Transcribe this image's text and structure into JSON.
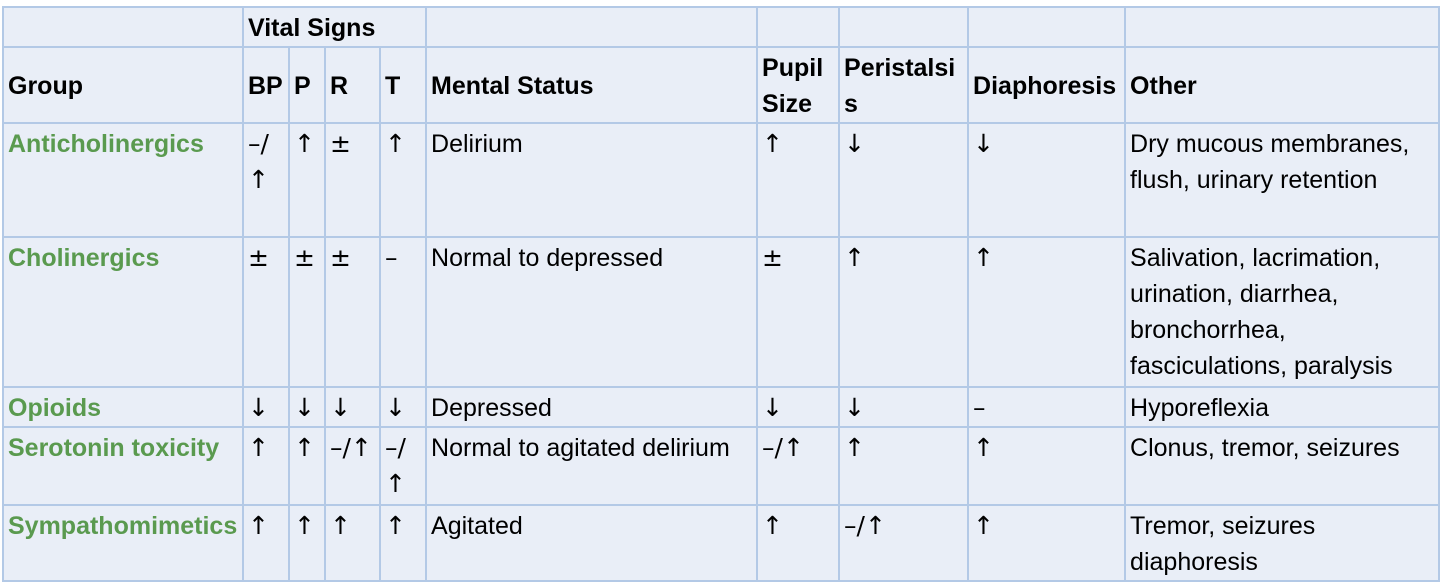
{
  "table": {
    "top_header": {
      "vital_signs": "Vital Signs"
    },
    "headers": {
      "group": "Group",
      "bp": "BP",
      "p": "P",
      "r": "R",
      "t": "T",
      "mental_status": "Mental Status",
      "pupil_size": "Pupil Size",
      "peristalsis": "Peristalsis",
      "diaphoresis": "Diaphoresis",
      "other": "Other"
    },
    "rows": [
      {
        "group": "Anticholinergics",
        "bp": "–/↑",
        "p": "↑",
        "r": "±",
        "t": "↑",
        "mental_status": "Delirium",
        "pupil_size": "↑",
        "peristalsis": "↓",
        "diaphoresis": "↓",
        "other": "Dry mucous membranes, flush, urinary retention"
      },
      {
        "group": "Cholinergics",
        "bp": "±",
        "p": "±",
        "r": "±",
        "t": "–",
        "mental_status": "Normal to depressed",
        "pupil_size": "±",
        "peristalsis": "↑",
        "diaphoresis": "↑",
        "other": "Salivation, lacrimation, urination, diarrhea, bronchorrhea, fasciculations, paralysis"
      },
      {
        "group": "Opioids",
        "bp": "↓",
        "p": "↓",
        "r": "↓",
        "t": "↓",
        "mental_status": "Depressed",
        "pupil_size": "↓",
        "peristalsis": "↓",
        "diaphoresis": "–",
        "other": "Hyporeflexia"
      },
      {
        "group": "Serotonin toxicity",
        "bp": "↑",
        "p": "↑",
        "r": "–/↑",
        "t": "–/↑",
        "mental_status": "Normal to agitated delirium",
        "pupil_size": "–/↑",
        "peristalsis": "↑",
        "diaphoresis": "↑",
        "other": "Clonus, tremor, seizures"
      },
      {
        "group": "Sympathomimetics",
        "bp": "↑",
        "p": "↑",
        "r": "↑",
        "t": "↑",
        "mental_status": "Agitated",
        "pupil_size": "↑",
        "peristalsis": "–/↑",
        "diaphoresis": "↑",
        "other": "Tremor, seizures diaphoresis"
      }
    ]
  }
}
